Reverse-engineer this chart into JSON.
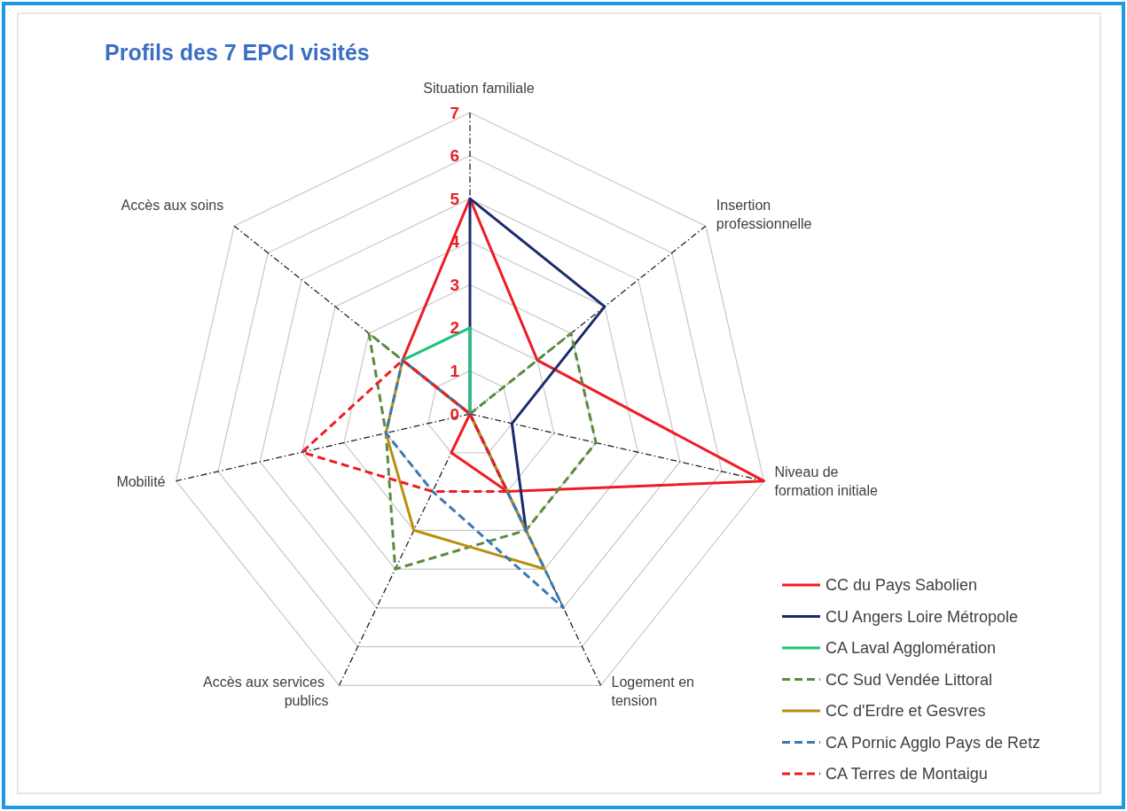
{
  "chart_data": {
    "type": "radar",
    "title": "Profils des 7 EPCI visités",
    "categories": [
      "Situation familiale",
      "Insertion professionnelle",
      "Niveau de formation initiale",
      "Logement en tension",
      "Accès aux services publics",
      "Mobilité",
      "Accès aux soins"
    ],
    "ylim": [
      0,
      7
    ],
    "yticks": [
      0,
      1,
      2,
      3,
      4,
      5,
      6,
      7
    ],
    "grid": true,
    "legend": "bottom right",
    "series": [
      {
        "name": "CC du Pays Sabolien",
        "color": "#ee1c25",
        "line_style": "solid",
        "values": [
          5,
          2,
          7,
          2,
          1,
          0,
          2
        ]
      },
      {
        "name": "CU Angers Loire Métropole",
        "color": "#1b2a6b",
        "line_style": "solid",
        "values": [
          5,
          4,
          1,
          3,
          0,
          0,
          0
        ]
      },
      {
        "name": "CA Laval Agglomération",
        "color": "#1fc479",
        "line_style": "solid",
        "values": [
          2,
          0,
          0,
          0,
          0,
          0,
          2
        ]
      },
      {
        "name": "CC Sud Vendée Littoral",
        "color": "#5b8a3c",
        "line_style": "dashed",
        "values": [
          0,
          3,
          3,
          3,
          4,
          2,
          3
        ]
      },
      {
        "name": "CC d'Erdre et Gesvres",
        "color": "#b8900f",
        "line_style": "solid",
        "values": [
          0,
          0,
          0,
          4,
          3,
          2,
          2
        ]
      },
      {
        "name": "CA Pornic Agglo Pays de Retz",
        "color": "#3a78b5",
        "line_style": "dashed",
        "values": [
          0,
          0,
          0,
          5,
          2,
          2,
          2
        ]
      },
      {
        "name": "CA Terres de Montaigu",
        "color": "#ee1c25",
        "line_style": "dashed",
        "values": [
          0,
          0,
          0,
          2,
          2,
          4,
          2
        ]
      }
    ]
  }
}
